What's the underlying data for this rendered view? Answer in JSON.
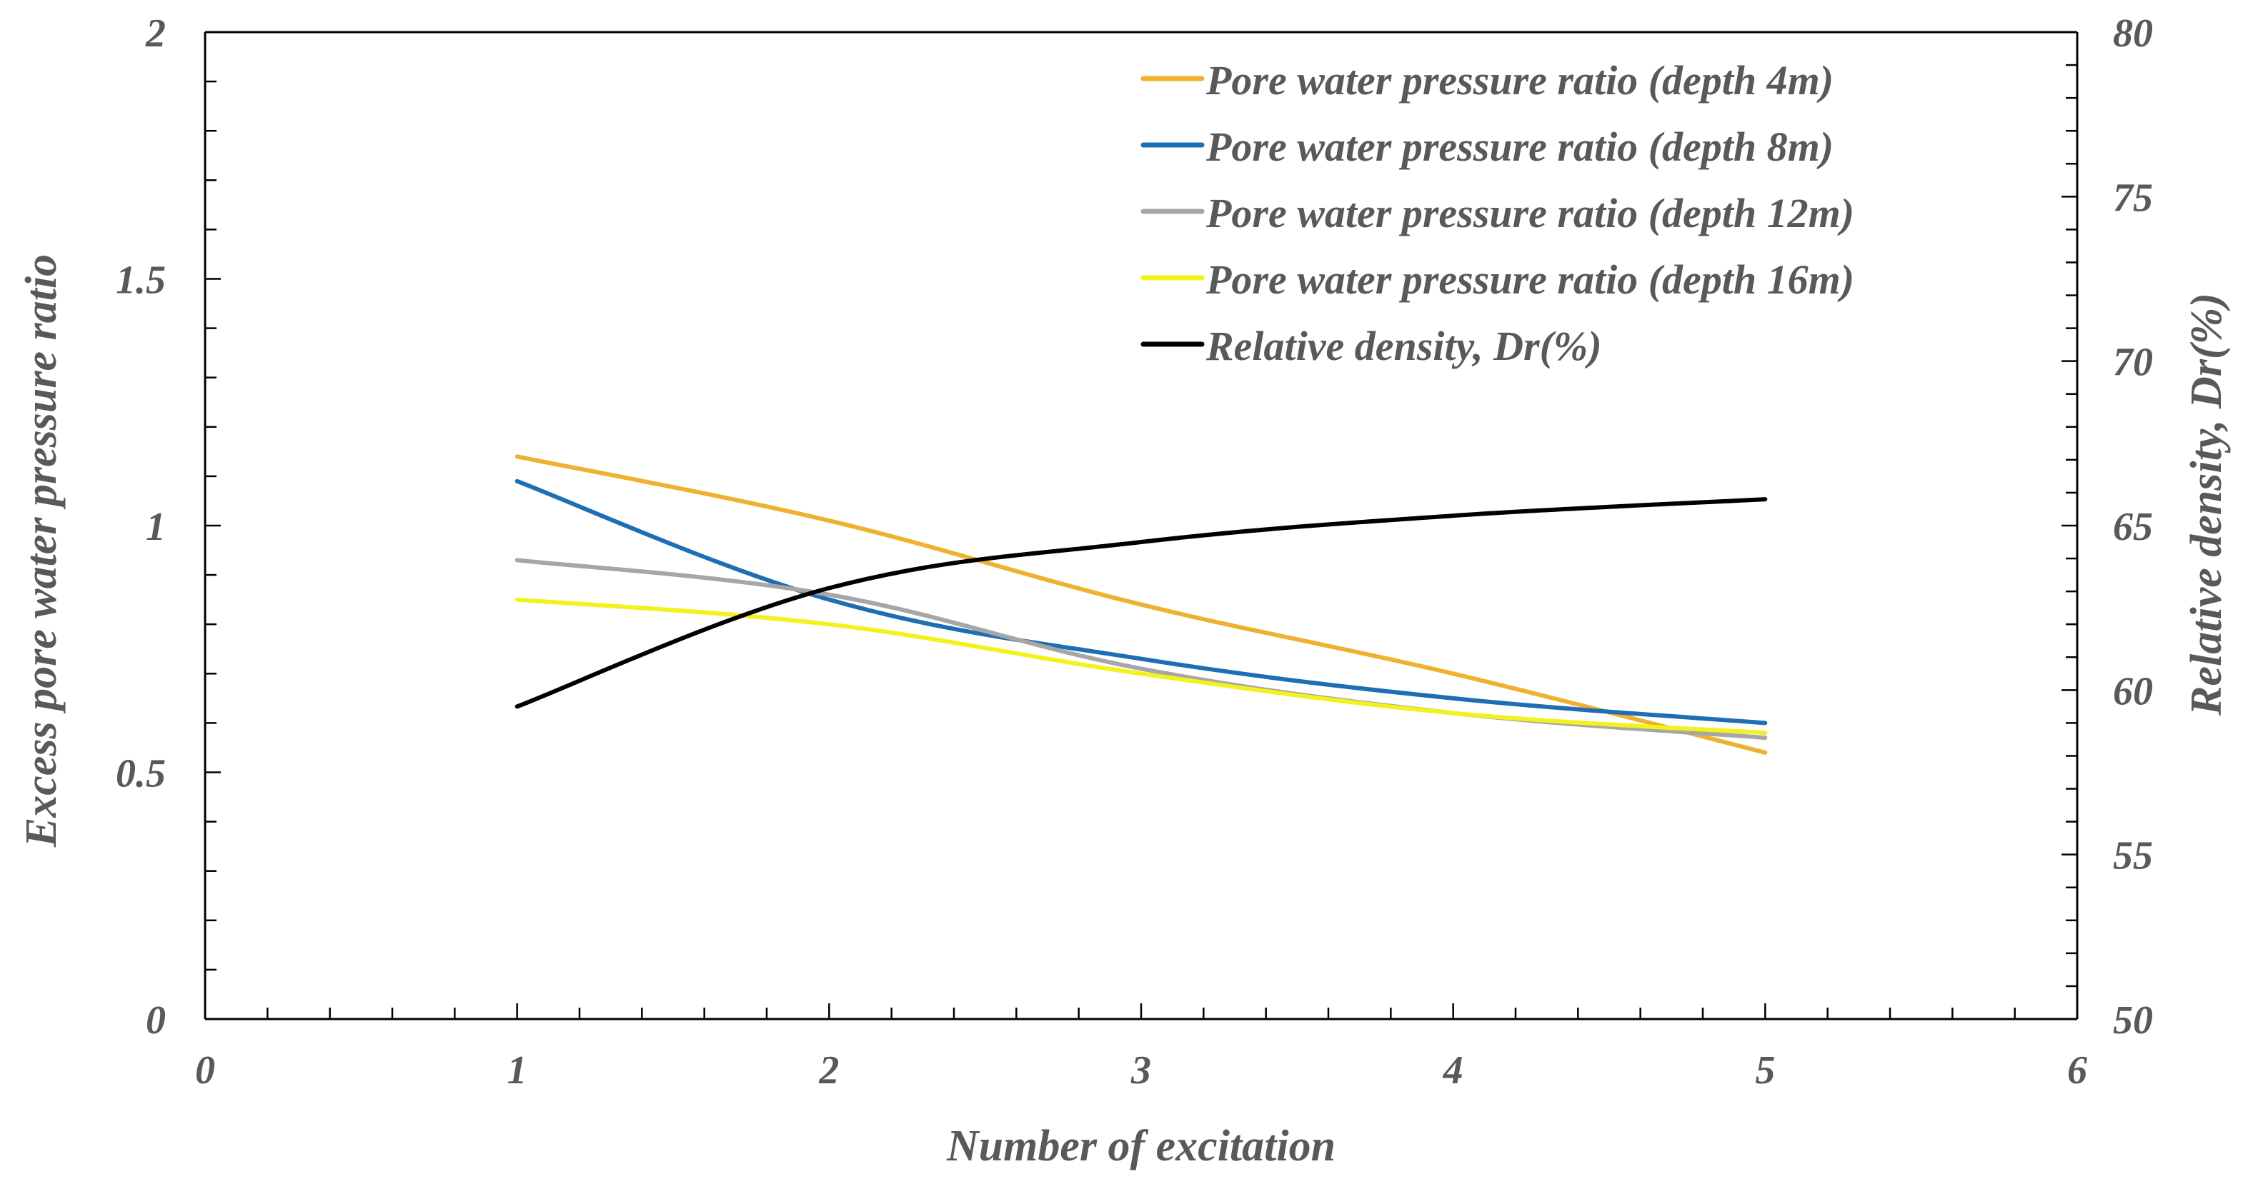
{
  "chart_data": {
    "type": "line",
    "title": "",
    "xlabel": "Number of excitation",
    "ylabel": "Excess pore water pressure ratio",
    "y2label": "Relative density, Dr(%)",
    "xlim": [
      0,
      6
    ],
    "ylim": [
      0,
      2
    ],
    "y2lim": [
      50,
      80
    ],
    "xticks": [
      {
        "value": 0,
        "label": "0"
      },
      {
        "value": 1,
        "label": "1"
      },
      {
        "value": 2,
        "label": "2"
      },
      {
        "value": 3,
        "label": "3"
      },
      {
        "value": 4,
        "label": "4"
      },
      {
        "value": 5,
        "label": "5"
      },
      {
        "value": 6,
        "label": "6"
      }
    ],
    "yticks": [
      {
        "value": 0,
        "label": "0"
      },
      {
        "value": 0.5,
        "label": "0.5"
      },
      {
        "value": 1,
        "label": "1"
      },
      {
        "value": 1.5,
        "label": "1.5"
      },
      {
        "value": 2,
        "label": "2"
      }
    ],
    "y2ticks": [
      {
        "value": 50,
        "label": "50"
      },
      {
        "value": 55,
        "label": "55"
      },
      {
        "value": 60,
        "label": "60"
      },
      {
        "value": 65,
        "label": "65"
      },
      {
        "value": 70,
        "label": "70"
      },
      {
        "value": 75,
        "label": "75"
      },
      {
        "value": 80,
        "label": "80"
      }
    ],
    "x_minor_step": 0.2,
    "y_minor_step": 0.1,
    "y2_minor_step": 1,
    "grid": false,
    "legend_position": "top-right",
    "series": [
      {
        "name": "Pore water pressure ratio (depth 4m)",
        "axis": "left",
        "color": "#F0B030",
        "x": [
          1,
          2,
          3,
          4,
          5
        ],
        "values": [
          1.14,
          1.01,
          0.84,
          0.7,
          0.54
        ]
      },
      {
        "name": "Pore water pressure ratio (depth 8m)",
        "axis": "left",
        "color": "#1F6EB4",
        "x": [
          1,
          2,
          3,
          4,
          5
        ],
        "values": [
          1.09,
          0.85,
          0.73,
          0.65,
          0.6
        ]
      },
      {
        "name": "Pore water pressure ratio (depth 12m)",
        "axis": "left",
        "color": "#A6A6A6",
        "x": [
          1,
          2,
          3,
          4,
          5
        ],
        "values": [
          0.93,
          0.86,
          0.71,
          0.62,
          0.57
        ]
      },
      {
        "name": "Pore water pressure ratio (depth 16m)",
        "axis": "left",
        "color": "#F2F21E",
        "x": [
          1,
          2,
          3,
          4,
          5
        ],
        "values": [
          0.85,
          0.8,
          0.7,
          0.62,
          0.58
        ]
      },
      {
        "name": "Relative density, Dr(%)",
        "axis": "right",
        "color": "#000000",
        "x": [
          1,
          2,
          3,
          4,
          5
        ],
        "values": [
          59.5,
          63.1,
          64.5,
          65.3,
          65.8
        ]
      }
    ]
  }
}
